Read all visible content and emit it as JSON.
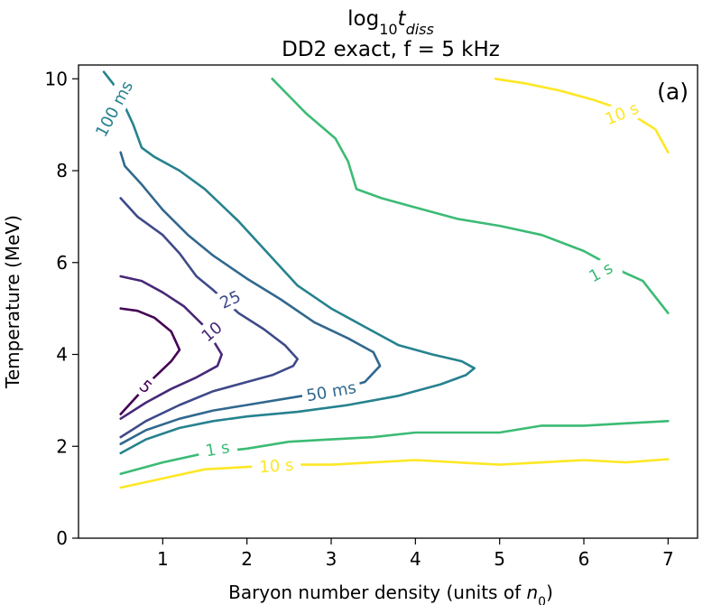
{
  "chart_data": {
    "type": "contour",
    "title_line1_prefix": "log",
    "title_line1_sub": "10",
    "title_line1_var": "t",
    "title_line1_varsub": "diss",
    "title_line2": "DD2 exact, f = 5 kHz",
    "panel_label": "(a)",
    "xlabel_prefix": "Baryon number density (units of ",
    "xlabel_var": "n",
    "xlabel_sub": "0",
    "xlabel_suffix": ")",
    "ylabel": "Temperature (MeV)",
    "xlim": [
      0.0,
      7.35
    ],
    "ylim": [
      0,
      10.3
    ],
    "xticks": [
      1,
      2,
      3,
      4,
      5,
      6,
      7
    ],
    "xtick_labels": [
      "1",
      "2",
      "3",
      "4",
      "5",
      "6",
      "7"
    ],
    "yticks": [
      0,
      2,
      4,
      6,
      8,
      10
    ],
    "ytick_labels": [
      "0",
      "2",
      "4",
      "6",
      "8",
      "10"
    ],
    "contours": [
      {
        "name": "5 ms",
        "color": "#440154",
        "points": [
          [
            0.5,
            2.7
          ],
          [
            0.7,
            3.1
          ],
          [
            0.9,
            3.5
          ],
          [
            1.1,
            3.85
          ],
          [
            1.2,
            4.1
          ],
          [
            1.1,
            4.5
          ],
          [
            0.9,
            4.8
          ],
          [
            0.7,
            4.95
          ],
          [
            0.5,
            5.0
          ]
        ],
        "labels": [
          {
            "text": "5",
            "x": 0.8,
            "y": 3.3,
            "angle": -40
          }
        ]
      },
      {
        "name": "10 ms",
        "color": "#482878",
        "points": [
          [
            0.5,
            2.6
          ],
          [
            0.8,
            2.95
          ],
          [
            1.1,
            3.25
          ],
          [
            1.4,
            3.5
          ],
          [
            1.65,
            3.75
          ],
          [
            1.7,
            4.0
          ],
          [
            1.5,
            4.6
          ],
          [
            1.25,
            5.05
          ],
          [
            1.0,
            5.35
          ],
          [
            0.75,
            5.6
          ],
          [
            0.5,
            5.7
          ]
        ],
        "labels": [
          {
            "text": "10",
            "x": 1.58,
            "y": 4.5,
            "angle": 40
          }
        ]
      },
      {
        "name": "25 ms",
        "color": "#3e4a89",
        "points": [
          [
            0.5,
            2.2
          ],
          [
            0.8,
            2.55
          ],
          [
            1.2,
            2.9
          ],
          [
            1.6,
            3.2
          ],
          [
            2.0,
            3.4
          ],
          [
            2.3,
            3.55
          ],
          [
            2.55,
            3.75
          ],
          [
            2.6,
            3.9
          ],
          [
            2.45,
            4.2
          ],
          [
            2.2,
            4.55
          ],
          [
            1.9,
            4.9
          ],
          [
            1.6,
            5.4
          ],
          [
            1.4,
            5.7
          ],
          [
            1.2,
            6.2
          ],
          [
            1.0,
            6.6
          ],
          [
            0.7,
            7.0
          ],
          [
            0.5,
            7.4
          ]
        ],
        "labels": [
          {
            "text": "25",
            "x": 1.8,
            "y": 5.2,
            "angle": 25
          }
        ]
      },
      {
        "name": "50 ms",
        "color": "#31688e",
        "points": [
          [
            0.5,
            2.05
          ],
          [
            0.8,
            2.35
          ],
          [
            1.2,
            2.6
          ],
          [
            1.6,
            2.78
          ],
          [
            2.0,
            2.9
          ],
          [
            2.5,
            3.05
          ],
          [
            3.0,
            3.2
          ],
          [
            3.4,
            3.4
          ],
          [
            3.58,
            3.75
          ],
          [
            3.5,
            4.05
          ],
          [
            3.2,
            4.35
          ],
          [
            2.8,
            4.7
          ],
          [
            2.4,
            5.2
          ],
          [
            2.0,
            5.65
          ],
          [
            1.6,
            6.15
          ],
          [
            1.3,
            6.6
          ],
          [
            1.0,
            7.15
          ],
          [
            0.75,
            7.7
          ],
          [
            0.55,
            8.1
          ],
          [
            0.5,
            8.4
          ]
        ],
        "labels": [
          {
            "text": "50 ms",
            "x": 3.0,
            "y": 3.2,
            "angle": 10
          }
        ]
      },
      {
        "name": "100 ms",
        "color": "#26828e",
        "points": [
          [
            0.5,
            1.85
          ],
          [
            0.8,
            2.15
          ],
          [
            1.2,
            2.4
          ],
          [
            1.6,
            2.55
          ],
          [
            2.0,
            2.65
          ],
          [
            2.6,
            2.75
          ],
          [
            3.2,
            2.9
          ],
          [
            3.8,
            3.1
          ],
          [
            4.3,
            3.35
          ],
          [
            4.6,
            3.55
          ],
          [
            4.7,
            3.7
          ],
          [
            4.55,
            3.85
          ],
          [
            4.2,
            4.0
          ],
          [
            3.8,
            4.2
          ],
          [
            3.4,
            4.6
          ],
          [
            3.0,
            5.0
          ],
          [
            2.6,
            5.5
          ],
          [
            2.2,
            6.3
          ],
          [
            1.9,
            6.9
          ],
          [
            1.5,
            7.6
          ],
          [
            1.2,
            8.0
          ],
          [
            0.9,
            8.3
          ],
          [
            0.75,
            8.5
          ],
          [
            0.65,
            9.0
          ],
          [
            0.55,
            9.4
          ],
          [
            0.45,
            9.8
          ],
          [
            0.3,
            10.15
          ]
        ],
        "labels": [
          {
            "text": "100 ms",
            "x": 0.42,
            "y": 9.35,
            "angle": 62
          }
        ]
      },
      {
        "name": "1 s (upper)",
        "color": "#3cbb75",
        "points": [
          [
            2.3,
            10.0
          ],
          [
            2.7,
            9.25
          ],
          [
            3.05,
            8.7
          ],
          [
            3.2,
            8.2
          ],
          [
            3.3,
            7.6
          ],
          [
            3.6,
            7.4
          ],
          [
            4.0,
            7.2
          ],
          [
            4.5,
            6.95
          ],
          [
            5.0,
            6.8
          ],
          [
            5.5,
            6.6
          ],
          [
            6.0,
            6.25
          ],
          [
            6.4,
            5.85
          ],
          [
            6.7,
            5.6
          ],
          [
            7.0,
            4.9
          ]
        ],
        "labels": [
          {
            "text": "1 s",
            "x": 6.2,
            "y": 5.8,
            "angle": 28
          }
        ]
      },
      {
        "name": "1 s (lower)",
        "color": "#3cbb75",
        "points": [
          [
            0.5,
            1.4
          ],
          [
            1.0,
            1.65
          ],
          [
            1.5,
            1.85
          ],
          [
            2.0,
            1.95
          ],
          [
            2.5,
            2.1
          ],
          [
            3.0,
            2.15
          ],
          [
            3.5,
            2.2
          ],
          [
            4.0,
            2.3
          ],
          [
            4.5,
            2.3
          ],
          [
            5.0,
            2.3
          ],
          [
            5.5,
            2.45
          ],
          [
            6.0,
            2.45
          ],
          [
            6.5,
            2.5
          ],
          [
            7.0,
            2.55
          ]
        ],
        "labels": [
          {
            "text": "1 s",
            "x": 1.65,
            "y": 1.95,
            "angle": 10
          }
        ]
      },
      {
        "name": "10 s (upper)",
        "color": "#fde725",
        "points": [
          [
            4.95,
            10.0
          ],
          [
            5.3,
            9.9
          ],
          [
            5.7,
            9.75
          ],
          [
            6.1,
            9.55
          ],
          [
            6.5,
            9.3
          ],
          [
            6.85,
            8.9
          ],
          [
            7.0,
            8.4
          ]
        ],
        "labels": [
          {
            "text": "10 s",
            "x": 6.45,
            "y": 9.25,
            "angle": 22
          }
        ]
      },
      {
        "name": "10 s (lower)",
        "color": "#fde725",
        "points": [
          [
            0.5,
            1.1
          ],
          [
            1.0,
            1.3
          ],
          [
            1.5,
            1.5
          ],
          [
            2.0,
            1.55
          ],
          [
            2.5,
            1.6
          ],
          [
            3.0,
            1.6
          ],
          [
            3.5,
            1.65
          ],
          [
            4.0,
            1.7
          ],
          [
            4.5,
            1.65
          ],
          [
            5.0,
            1.6
          ],
          [
            5.5,
            1.65
          ],
          [
            6.0,
            1.7
          ],
          [
            6.5,
            1.65
          ],
          [
            7.0,
            1.72
          ]
        ],
        "labels": [
          {
            "text": "10 s",
            "x": 2.35,
            "y": 1.58,
            "angle": 4
          }
        ]
      }
    ]
  }
}
